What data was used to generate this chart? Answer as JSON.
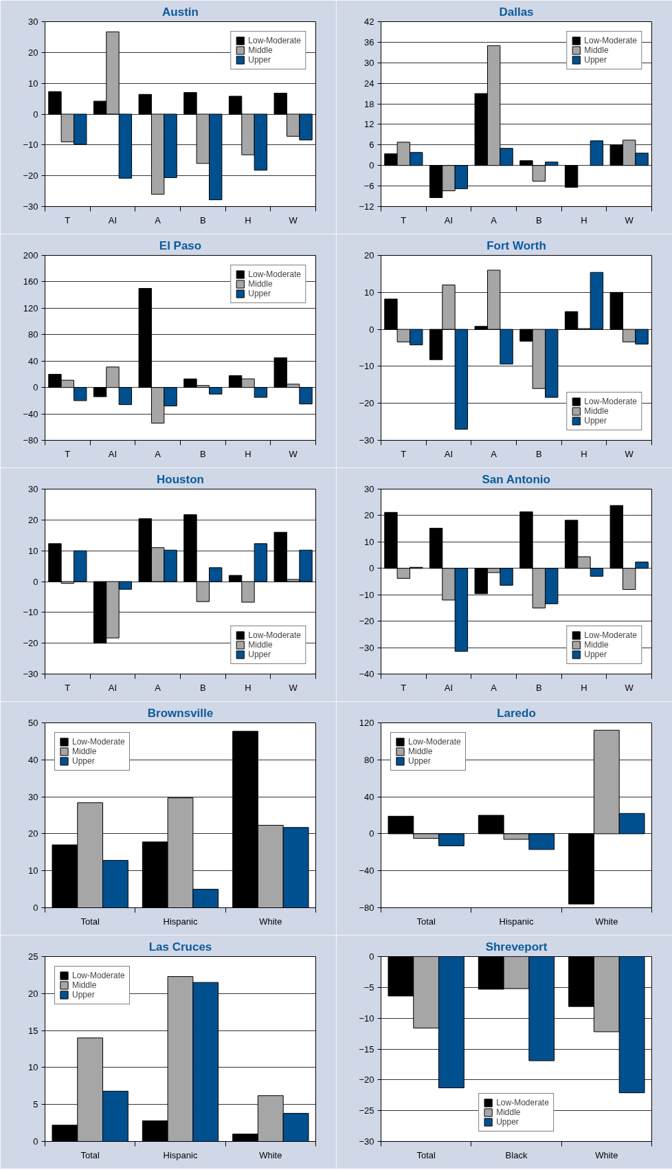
{
  "chart_data": [
    {
      "type": "bar",
      "title": "Austin",
      "categories": [
        "T",
        "AI",
        "A",
        "B",
        "H",
        "W"
      ],
      "ylim": [
        -30,
        30
      ],
      "yticks": [
        -30,
        -20,
        -10,
        0,
        10,
        20,
        30
      ],
      "grid": "y",
      "legend": "top right",
      "series": [
        {
          "name": "Low-Moderate",
          "color": "#000000",
          "values": [
            7.3,
            4.2,
            6.4,
            7,
            5.8,
            6.8
          ]
        },
        {
          "name": "Middle",
          "color": "#a6a6a6",
          "values": [
            -9,
            26.7,
            -26,
            -16,
            -13.2,
            -7.2
          ]
        },
        {
          "name": "Upper",
          "color": "#00508f",
          "values": [
            -9.8,
            -20.8,
            -20.6,
            -27.8,
            -18.2,
            -8.4
          ]
        }
      ]
    },
    {
      "type": "bar",
      "title": "Dallas",
      "categories": [
        "T",
        "AI",
        "A",
        "B",
        "H",
        "W"
      ],
      "ylim": [
        -12,
        42
      ],
      "yticks": [
        -12,
        -6,
        0,
        6,
        12,
        18,
        24,
        30,
        36,
        42
      ],
      "grid": "y",
      "legend": "top right",
      "series": [
        {
          "name": "Low-Moderate",
          "color": "#000000",
          "values": [
            3.4,
            -9.4,
            21,
            1.4,
            -6.4,
            6
          ]
        },
        {
          "name": "Middle",
          "color": "#a6a6a6",
          "values": [
            6.8,
            -7.4,
            35,
            -4.6,
            null,
            7.4
          ]
        },
        {
          "name": "Upper",
          "color": "#00508f",
          "values": [
            3.8,
            -6.8,
            5,
            1,
            7.2,
            3.6
          ]
        }
      ]
    },
    {
      "type": "bar",
      "title": "El Paso",
      "categories": [
        "T",
        "AI",
        "A",
        "B",
        "H",
        "W"
      ],
      "ylim": [
        -80,
        200
      ],
      "yticks": [
        -80,
        -40,
        0,
        40,
        80,
        120,
        160,
        200
      ],
      "grid": "y",
      "legend": "top right",
      "series": [
        {
          "name": "Low-Moderate",
          "color": "#000000",
          "values": [
            20,
            -14,
            150,
            13,
            18,
            45
          ]
        },
        {
          "name": "Middle",
          "color": "#a6a6a6",
          "values": [
            11,
            31,
            -54,
            3,
            13,
            5
          ]
        },
        {
          "name": "Upper",
          "color": "#00508f",
          "values": [
            -20,
            -26,
            -28,
            -10,
            -15,
            -25
          ]
        }
      ]
    },
    {
      "type": "bar",
      "title": "Fort Worth",
      "categories": [
        "T",
        "AI",
        "A",
        "B",
        "H",
        "W"
      ],
      "ylim": [
        -30,
        20
      ],
      "yticks": [
        -30,
        -20,
        -10,
        0,
        10,
        20
      ],
      "grid": "y",
      "legend": "bottom right",
      "series": [
        {
          "name": "Low-Moderate",
          "color": "#000000",
          "values": [
            8.2,
            -8.2,
            0.8,
            -3.2,
            4.8,
            10
          ]
        },
        {
          "name": "Middle",
          "color": "#a6a6a6",
          "values": [
            -3.4,
            12,
            16,
            -16,
            0.2,
            -3.4
          ]
        },
        {
          "name": "Upper",
          "color": "#00508f",
          "values": [
            -4.2,
            -27,
            -9.4,
            -18.4,
            15.4,
            -4
          ]
        }
      ]
    },
    {
      "type": "bar",
      "title": "Houston",
      "categories": [
        "T",
        "AI",
        "A",
        "B",
        "H",
        "W"
      ],
      "ylim": [
        -30,
        30
      ],
      "yticks": [
        -30,
        -20,
        -10,
        0,
        10,
        20,
        30
      ],
      "grid": "y",
      "legend": "bottom right",
      "series": [
        {
          "name": "Low-Moderate",
          "color": "#000000",
          "values": [
            12.3,
            -20,
            20.4,
            21.7,
            2,
            16
          ]
        },
        {
          "name": "Middle",
          "color": "#a6a6a6",
          "values": [
            -0.6,
            -18.3,
            11,
            -6.5,
            -6.7,
            0.7
          ]
        },
        {
          "name": "Upper",
          "color": "#00508f",
          "values": [
            10,
            -2.5,
            10.2,
            4.5,
            12.3,
            10.2
          ]
        }
      ]
    },
    {
      "type": "bar",
      "title": "San Antonio",
      "categories": [
        "T",
        "AI",
        "A",
        "B",
        "H",
        "W"
      ],
      "ylim": [
        -40,
        30
      ],
      "yticks": [
        -40,
        -30,
        -20,
        -10,
        0,
        10,
        20,
        30
      ],
      "grid": "y",
      "legend": "bottom right",
      "series": [
        {
          "name": "Low-Moderate",
          "color": "#000000",
          "values": [
            21.2,
            15.2,
            -9.6,
            21.4,
            18.2,
            23.8
          ]
        },
        {
          "name": "Middle",
          "color": "#a6a6a6",
          "values": [
            -3.8,
            -12,
            -1.6,
            -15,
            4.4,
            -8
          ]
        },
        {
          "name": "Upper",
          "color": "#00508f",
          "values": [
            0.4,
            -31.4,
            -6.4,
            -13.4,
            -3,
            2.4
          ]
        }
      ]
    },
    {
      "type": "bar",
      "title": "Brownsville",
      "categories": [
        "Total",
        "Hispanic",
        "White"
      ],
      "ylim": [
        0,
        50
      ],
      "yticks": [
        0,
        10,
        20,
        30,
        40,
        50
      ],
      "grid": "y",
      "legend": "top left",
      "series": [
        {
          "name": "Low-Moderate",
          "color": "#000000",
          "values": [
            17,
            17.8,
            47.7
          ]
        },
        {
          "name": "Middle",
          "color": "#a6a6a6",
          "values": [
            28.4,
            29.7,
            22.3
          ]
        },
        {
          "name": "Upper",
          "color": "#00508f",
          "values": [
            12.8,
            5,
            21.7
          ]
        }
      ]
    },
    {
      "type": "bar",
      "title": "Laredo",
      "categories": [
        "Total",
        "Hispanic",
        "White"
      ],
      "ylim": [
        -80,
        120
      ],
      "yticks": [
        -80,
        -40,
        0,
        40,
        80,
        120
      ],
      "grid": "y",
      "legend": "top left",
      "series": [
        {
          "name": "Low-Moderate",
          "color": "#000000",
          "values": [
            19,
            20,
            -76
          ]
        },
        {
          "name": "Middle",
          "color": "#a6a6a6",
          "values": [
            -5,
            -6,
            112
          ]
        },
        {
          "name": "Upper",
          "color": "#00508f",
          "values": [
            -13,
            -17,
            22
          ]
        }
      ]
    },
    {
      "type": "bar",
      "title": "Las Cruces",
      "categories": [
        "Total",
        "Hispanic",
        "White"
      ],
      "ylim": [
        0,
        25
      ],
      "yticks": [
        0,
        5,
        10,
        15,
        20,
        25
      ],
      "grid": "y",
      "legend": "top left",
      "series": [
        {
          "name": "Low-Moderate",
          "color": "#000000",
          "values": [
            2.2,
            2.8,
            1
          ]
        },
        {
          "name": "Middle",
          "color": "#a6a6a6",
          "values": [
            14,
            22.3,
            6.2
          ]
        },
        {
          "name": "Upper",
          "color": "#00508f",
          "values": [
            6.8,
            21.5,
            3.8
          ]
        }
      ]
    },
    {
      "type": "bar",
      "title": "Shreveport",
      "categories": [
        "Total",
        "Black",
        "White"
      ],
      "ylim": [
        -30,
        0
      ],
      "yticks": [
        -30,
        -25,
        -20,
        -15,
        -10,
        -5,
        0
      ],
      "grid": "y",
      "legend": "bottom",
      "series": [
        {
          "name": "Low-Moderate",
          "color": "#000000",
          "values": [
            -6.4,
            -5.3,
            -8.1
          ]
        },
        {
          "name": "Middle",
          "color": "#a6a6a6",
          "values": [
            -11.6,
            -5.2,
            -12.2
          ]
        },
        {
          "name": "Upper",
          "color": "#00508f",
          "values": [
            -21.3,
            -16.9,
            -22.1
          ]
        }
      ]
    }
  ]
}
